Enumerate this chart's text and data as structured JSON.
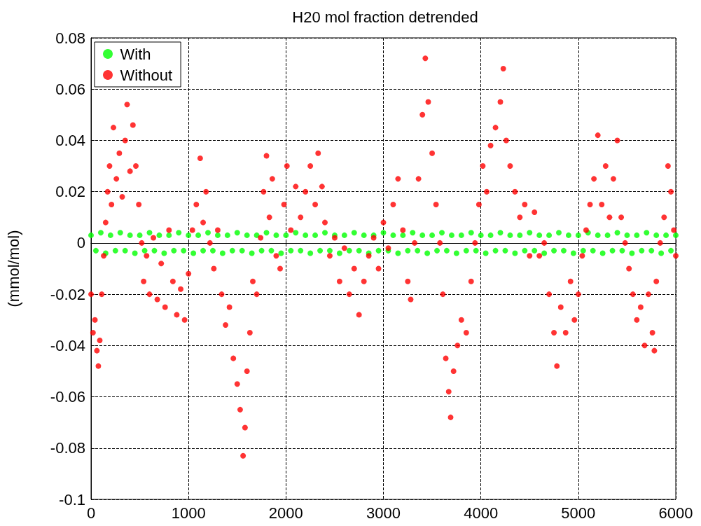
{
  "chart_data": {
    "type": "scatter",
    "title": "H20 mol fraction detrended",
    "ylabel": "(mmol/mol)",
    "xlim": [
      0,
      6000
    ],
    "xticks": [
      0,
      1000,
      2000,
      3000,
      4000,
      5000,
      6000
    ],
    "ylim": [
      -0.1,
      0.08
    ],
    "yticks": [
      -0.1,
      -0.08,
      -0.06,
      -0.04,
      -0.02,
      0,
      0.02,
      0.04,
      0.06,
      0.08
    ],
    "grid": true,
    "legend": "top left",
    "marker": "circle",
    "series": [
      {
        "name": "With",
        "color": "#00ff00",
        "x": [
          0,
          100,
          200,
          300,
          400,
          500,
          600,
          700,
          800,
          900,
          1000,
          1100,
          1200,
          1300,
          1400,
          1500,
          1600,
          1700,
          1800,
          1900,
          2000,
          2100,
          2200,
          2300,
          2400,
          2500,
          2600,
          2700,
          2800,
          2900,
          3000,
          3100,
          3200,
          3300,
          3400,
          3500,
          3600,
          3700,
          3800,
          3900,
          4000,
          4100,
          4200,
          4300,
          4400,
          4500,
          4600,
          4700,
          4800,
          4900,
          5000,
          5100,
          5200,
          5300,
          5400,
          5500,
          5600,
          5700,
          5800,
          5900,
          6000,
          50,
          150,
          250,
          350,
          450,
          550,
          650,
          750,
          850,
          950,
          1050,
          1150,
          1250,
          1350,
          1450,
          1550,
          1650,
          1750,
          1850,
          1950,
          2050,
          2150,
          2250,
          2350,
          2450,
          2550,
          2650,
          2750,
          2850,
          2950,
          3050,
          3150,
          3250,
          3350,
          3450,
          3550,
          3650,
          3750,
          3850,
          3950,
          4050,
          4150,
          4250,
          4350,
          4450,
          4550,
          4650,
          4750,
          4850,
          4950,
          5050,
          5150,
          5250,
          5350,
          5450,
          5550,
          5650,
          5750,
          5850,
          5950
        ],
        "values": [
          0.003,
          0.004,
          0.003,
          0.004,
          0.003,
          0.003,
          0.004,
          0.003,
          0.003,
          0.004,
          0.003,
          0.003,
          0.004,
          0.003,
          0.003,
          0.004,
          0.003,
          0.003,
          0.004,
          0.003,
          0.003,
          0.004,
          0.003,
          0.003,
          0.004,
          0.003,
          0.003,
          0.004,
          0.003,
          0.003,
          0.004,
          0.003,
          0.003,
          0.004,
          0.003,
          0.003,
          0.004,
          0.003,
          0.003,
          0.004,
          0.003,
          0.003,
          0.004,
          0.003,
          0.003,
          0.004,
          0.003,
          0.003,
          0.004,
          0.003,
          0.003,
          0.004,
          0.003,
          0.003,
          0.004,
          0.003,
          0.003,
          0.004,
          0.003,
          0.003,
          0.003,
          -0.003,
          -0.004,
          -0.003,
          -0.003,
          -0.004,
          -0.003,
          -0.003,
          -0.004,
          -0.003,
          -0.003,
          -0.004,
          -0.003,
          -0.003,
          -0.004,
          -0.003,
          -0.003,
          -0.004,
          -0.003,
          -0.003,
          -0.004,
          -0.003,
          -0.003,
          -0.004,
          -0.003,
          -0.003,
          -0.004,
          -0.003,
          -0.003,
          -0.004,
          -0.003,
          -0.003,
          -0.004,
          -0.003,
          -0.003,
          -0.004,
          -0.003,
          -0.003,
          -0.004,
          -0.003,
          -0.003,
          -0.004,
          -0.003,
          -0.003,
          -0.004,
          -0.003,
          -0.003,
          -0.004,
          -0.003,
          -0.003,
          -0.004,
          -0.003,
          -0.003,
          -0.004,
          -0.003,
          -0.003,
          -0.004,
          -0.003,
          -0.003,
          -0.004,
          -0.003
        ]
      },
      {
        "name": "Without",
        "color": "#ff0000",
        "x": [
          0,
          20,
          40,
          60,
          75,
          90,
          110,
          130,
          150,
          170,
          190,
          210,
          230,
          260,
          290,
          320,
          350,
          370,
          400,
          430,
          460,
          490,
          520,
          540,
          570,
          600,
          640,
          680,
          720,
          760,
          800,
          840,
          880,
          920,
          960,
          1000,
          1040,
          1080,
          1120,
          1150,
          1180,
          1220,
          1260,
          1300,
          1340,
          1380,
          1420,
          1460,
          1500,
          1530,
          1560,
          1580,
          1600,
          1630,
          1660,
          1700,
          1740,
          1770,
          1800,
          1830,
          1860,
          1900,
          1940,
          1980,
          2010,
          2050,
          2100,
          2150,
          2200,
          2250,
          2300,
          2330,
          2370,
          2400,
          2450,
          2500,
          2550,
          2600,
          2650,
          2700,
          2750,
          2800,
          2850,
          2900,
          2950,
          3000,
          3050,
          3100,
          3150,
          3200,
          3250,
          3280,
          3320,
          3360,
          3400,
          3430,
          3460,
          3500,
          3540,
          3580,
          3610,
          3640,
          3670,
          3690,
          3720,
          3760,
          3800,
          3850,
          3900,
          3940,
          3980,
          4020,
          4060,
          4100,
          4150,
          4200,
          4230,
          4260,
          4300,
          4350,
          4400,
          4450,
          4500,
          4550,
          4600,
          4650,
          4700,
          4750,
          4780,
          4820,
          4870,
          4920,
          4960,
          5000,
          5040,
          5080,
          5120,
          5160,
          5200,
          5240,
          5280,
          5320,
          5360,
          5400,
          5440,
          5480,
          5520,
          5560,
          5600,
          5640,
          5680,
          5720,
          5760,
          5780,
          5800,
          5840,
          5880,
          5920,
          5950,
          5980,
          6000
        ],
        "values": [
          -0.02,
          -0.035,
          -0.03,
          -0.042,
          -0.048,
          -0.038,
          -0.02,
          -0.005,
          0.008,
          0.02,
          0.03,
          0.015,
          0.045,
          0.025,
          0.035,
          0.018,
          0.04,
          0.054,
          0.028,
          0.046,
          0.03,
          0.015,
          0.0,
          -0.015,
          -0.005,
          -0.02,
          0.002,
          -0.022,
          -0.008,
          -0.025,
          0.005,
          -0.015,
          -0.028,
          -0.018,
          -0.03,
          -0.012,
          0.005,
          0.015,
          0.033,
          0.008,
          0.02,
          0.0,
          -0.01,
          0.005,
          -0.02,
          -0.032,
          -0.025,
          -0.045,
          -0.055,
          -0.065,
          -0.083,
          -0.072,
          -0.05,
          -0.035,
          -0.015,
          -0.02,
          0.002,
          0.02,
          0.034,
          0.01,
          0.025,
          -0.005,
          -0.01,
          0.015,
          0.03,
          0.005,
          0.022,
          0.01,
          0.02,
          0.03,
          0.015,
          0.035,
          0.022,
          0.008,
          -0.005,
          0.002,
          -0.015,
          -0.002,
          -0.02,
          -0.01,
          -0.028,
          -0.015,
          -0.005,
          0.002,
          -0.01,
          0.008,
          -0.002,
          0.015,
          0.025,
          0.005,
          -0.015,
          -0.022,
          0.0,
          0.025,
          0.05,
          0.072,
          0.055,
          0.035,
          0.015,
          0.0,
          -0.02,
          -0.045,
          -0.058,
          -0.068,
          -0.05,
          -0.04,
          -0.03,
          -0.035,
          -0.015,
          0.0,
          0.015,
          0.03,
          0.02,
          0.038,
          0.045,
          0.055,
          0.068,
          0.04,
          0.03,
          0.02,
          0.01,
          0.015,
          -0.005,
          0.012,
          -0.005,
          0.0,
          -0.02,
          -0.035,
          -0.048,
          -0.025,
          -0.035,
          -0.015,
          -0.03,
          -0.02,
          -0.005,
          0.005,
          0.015,
          0.025,
          0.042,
          0.015,
          0.03,
          0.01,
          0.025,
          0.04,
          0.01,
          0.0,
          -0.01,
          -0.02,
          -0.03,
          -0.025,
          -0.04,
          -0.02,
          -0.035,
          -0.042,
          -0.015,
          0.0,
          0.01,
          0.03,
          0.02,
          0.005,
          -0.005
        ]
      }
    ]
  }
}
